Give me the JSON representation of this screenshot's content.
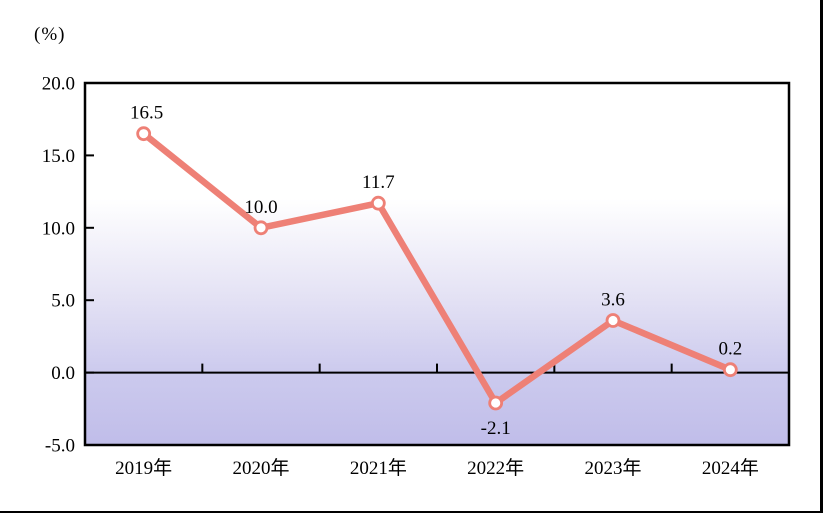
{
  "page": {
    "background": "#ffffff",
    "frame_border_color": "#000000"
  },
  "chart_data": {
    "type": "line",
    "title": "",
    "ylabel": "(%)",
    "xlabel": "",
    "categories": [
      "2019年",
      "2020年",
      "2021年",
      "2022年",
      "2023年",
      "2024年"
    ],
    "values": [
      16.5,
      10.0,
      11.7,
      -2.1,
      3.6,
      0.2
    ],
    "data_labels": [
      "16.5",
      "10.0",
      "11.7",
      "-2.1",
      "3.6",
      "0.2"
    ],
    "label_positions": [
      "above",
      "above",
      "above",
      "below",
      "above",
      "above"
    ],
    "ylim": [
      -5,
      20
    ],
    "yticks": [
      20.0,
      15.0,
      10.0,
      5.0,
      0.0,
      -5.0
    ],
    "ytick_labels": [
      "20.0",
      "15.0",
      "10.0",
      "5.0",
      "0.0",
      "-5.0"
    ],
    "grid": false,
    "legend": "none",
    "zero_line": true,
    "line_color": "#ee8076",
    "marker_fill": "#ffffff",
    "axis_color": "#000000",
    "plot_bg_gradient": [
      "#ffffff",
      "#ffffff",
      "#e3e1f4",
      "#cccaee",
      "#c0bde9"
    ],
    "plot_bg_gradient_stops": [
      0,
      32,
      60,
      80,
      100
    ]
  }
}
